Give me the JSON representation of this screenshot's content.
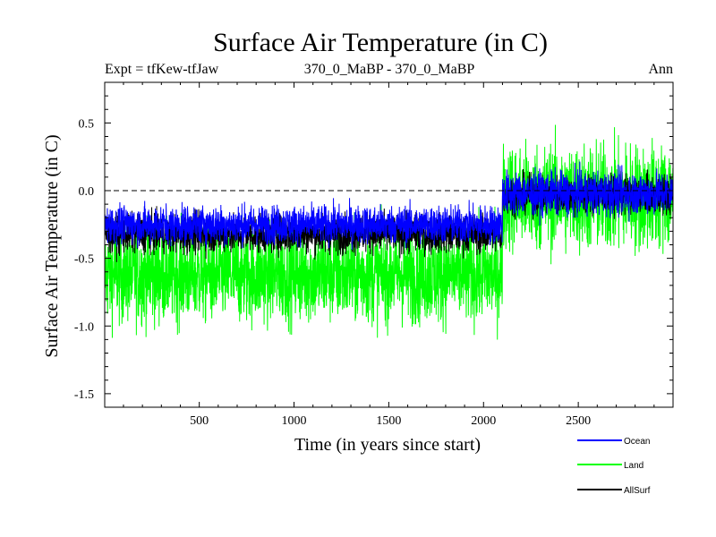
{
  "chart_data": {
    "type": "line",
    "title": "Surface Air Temperature (in C)",
    "subtitle_left": "Expt = tfKew-tfJaw",
    "subtitle_center": "370_0_MaBP - 370_0_MaBP",
    "subtitle_right": "Ann",
    "xlabel": "Time (in years since start)",
    "ylabel": "Surface Air Temperature (in C)",
    "xlim": [
      1,
      3000
    ],
    "ylim": [
      -1.6,
      0.8
    ],
    "x_ticks": [
      500,
      1000,
      1500,
      2000,
      2500
    ],
    "y_ticks": [
      0.5,
      0.0,
      -0.5,
      -1.0,
      -1.5
    ],
    "y_tick_labels": [
      "0.5",
      "0.0",
      "-0.5",
      "-1.0",
      "-1.5"
    ],
    "reference_line": {
      "y": 0.0,
      "style": "dashed"
    },
    "n_points": 3000,
    "step_year": 2100,
    "series": [
      {
        "name": "Ocean",
        "color": "#0000ff",
        "mean_before": -0.25,
        "mean_after": -0.02,
        "spread_before": 0.07,
        "spread_after": 0.08
      },
      {
        "name": "Land",
        "color": "#00ff00",
        "mean_before": -0.62,
        "mean_after": -0.05,
        "spread_before": 0.18,
        "spread_after": 0.2
      },
      {
        "name": "AllSurf",
        "color": "#000000",
        "mean_before": -0.32,
        "mean_after": -0.03,
        "spread_before": 0.07,
        "spread_after": 0.07
      }
    ],
    "legend_placement": "bottom-right",
    "grid": false
  }
}
